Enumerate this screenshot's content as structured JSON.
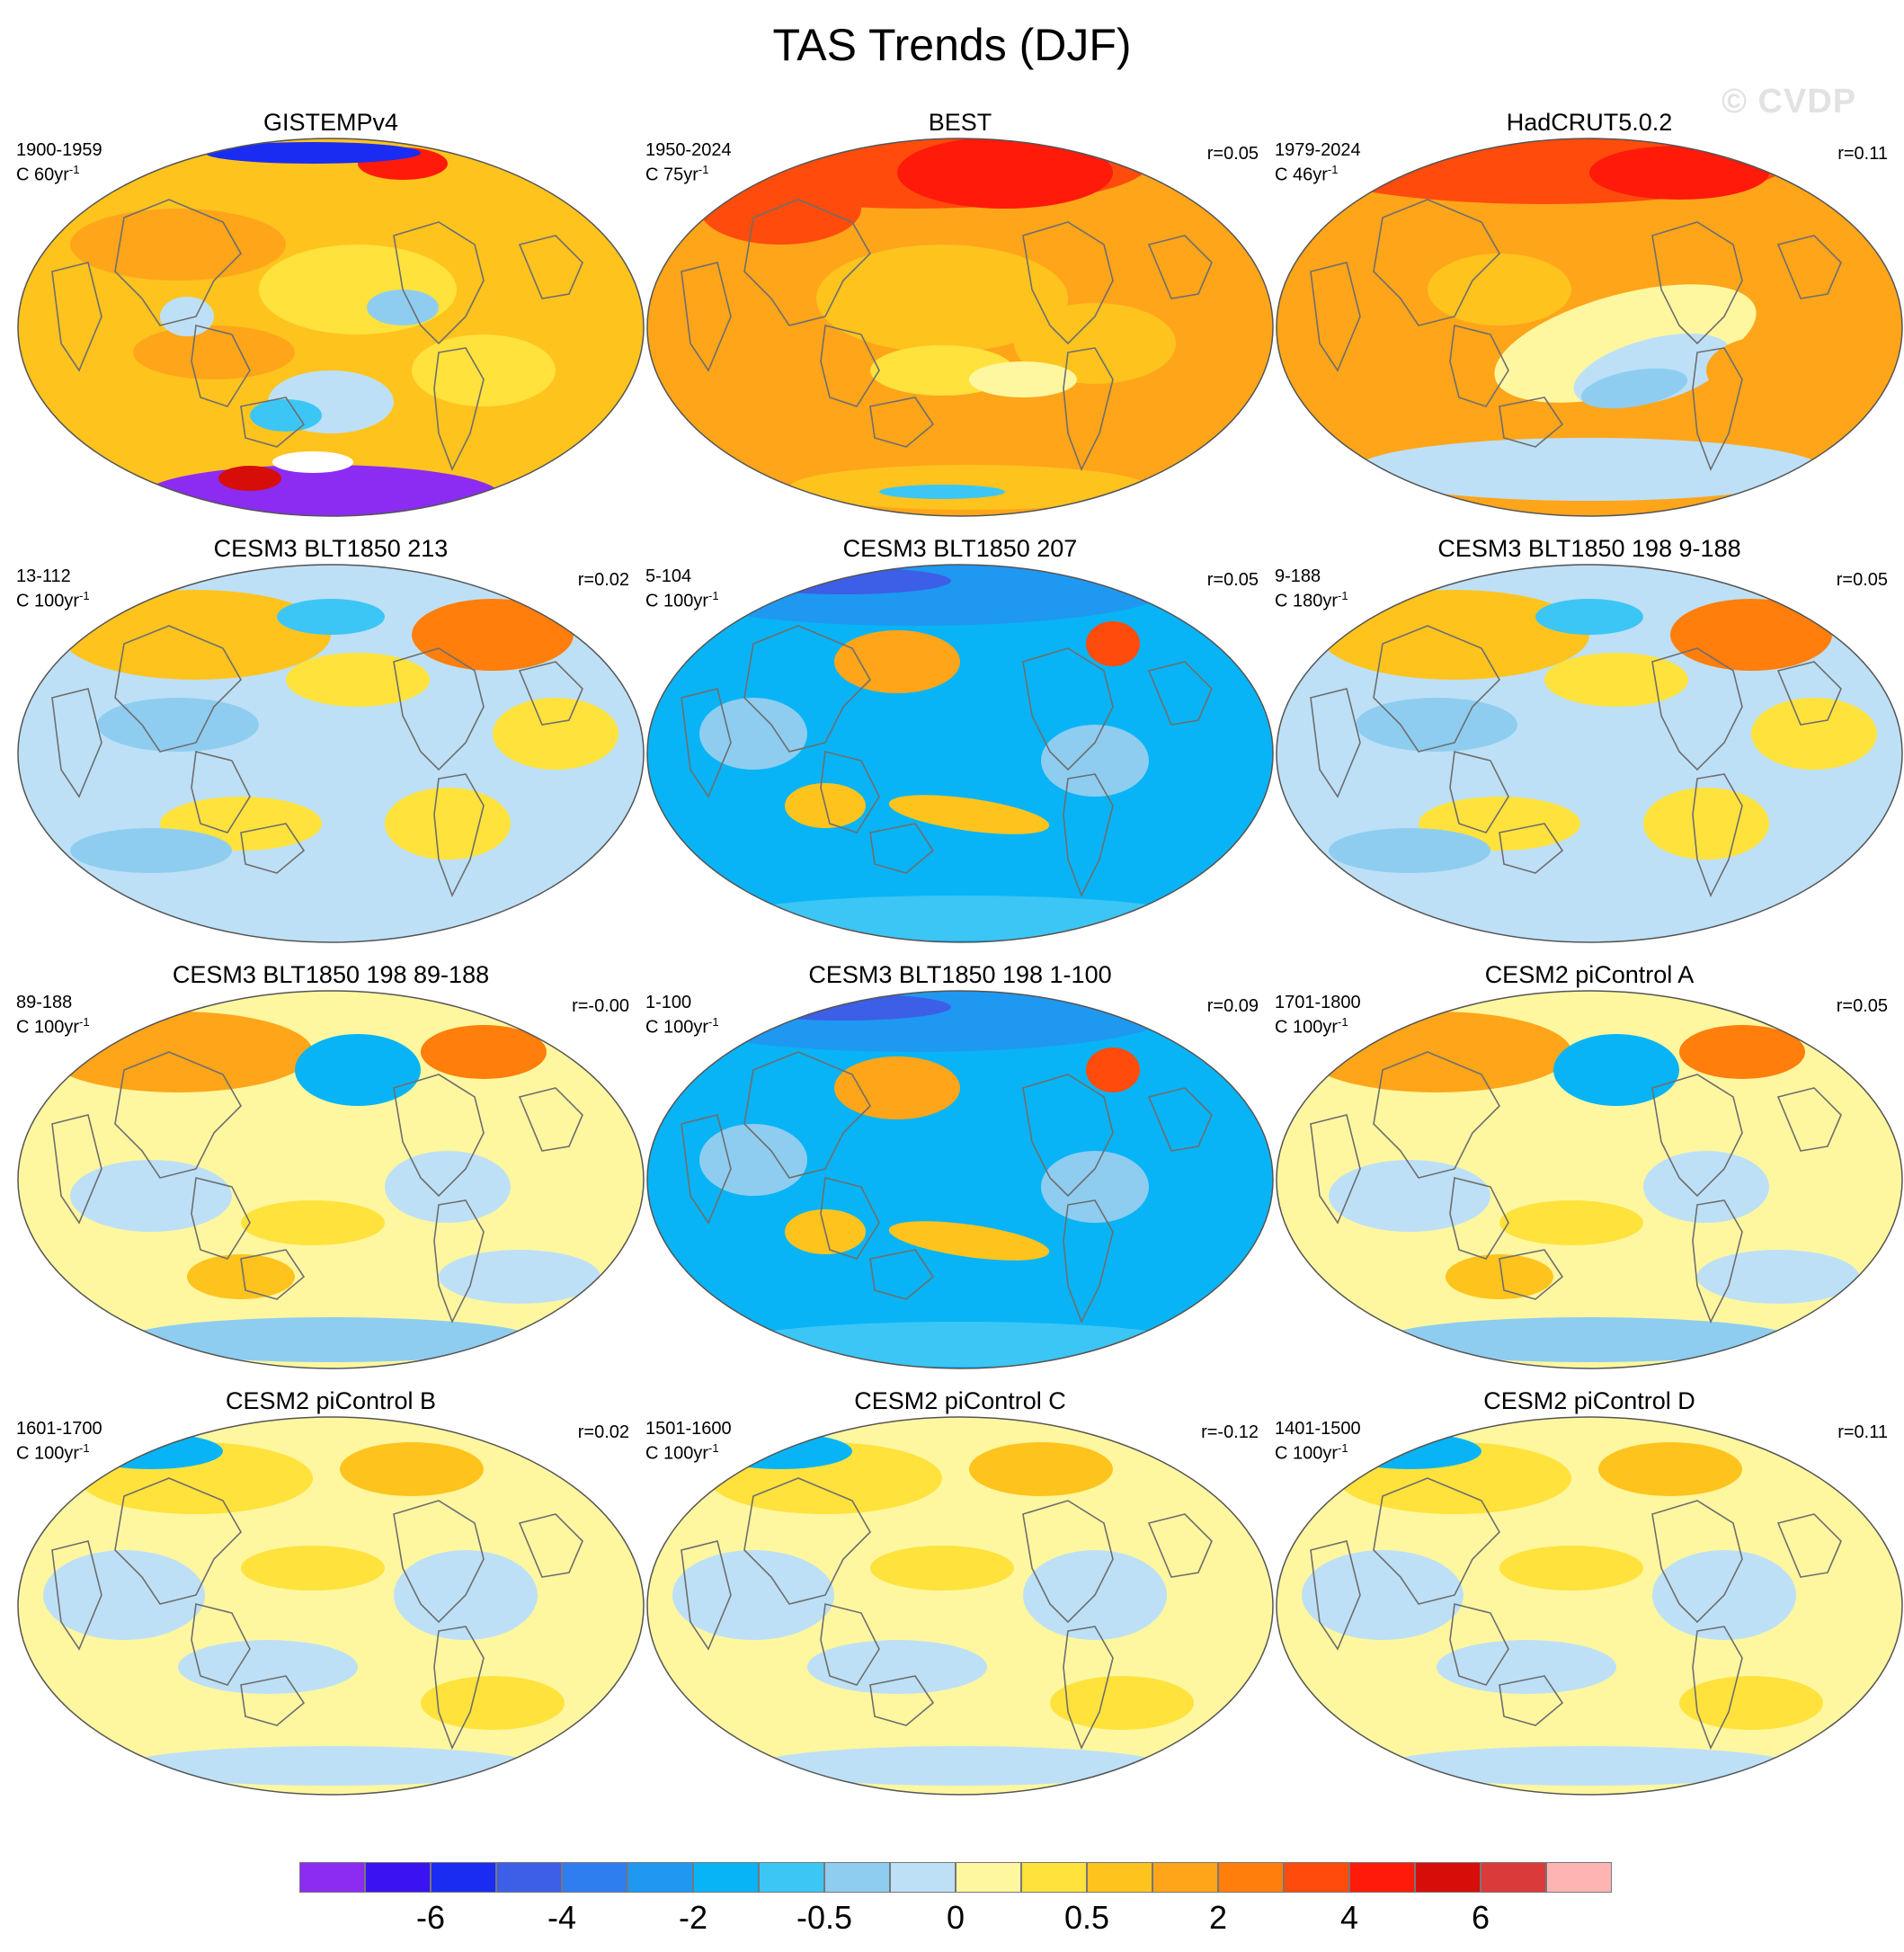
{
  "title": "TAS Trends (DJF)",
  "watermark": "© CVDP",
  "colors": {
    "ocean_outline": "#555555",
    "coast": "#6e6e6e",
    "scale": [
      "#8c2cf2",
      "#3b12f2",
      "#1a2cf2",
      "#3d5ee6",
      "#2f7ef0",
      "#1f98f2",
      "#08b4f5",
      "#3cc6f5",
      "#8ecdf0",
      "#bde0f6",
      "#fff7a0",
      "#ffe23c",
      "#ffc31e",
      "#ffa51a",
      "#ff7e0c",
      "#ff4c0c",
      "#ff1a0a",
      "#d70d0a",
      "#db3a3a",
      "#ffb4b4"
    ]
  },
  "panels": [
    {
      "title": "GISTEMPv4",
      "period": "1900-1959",
      "units": "C 60yr",
      "corr": "",
      "pattern": "gistemp"
    },
    {
      "title": "BEST",
      "period": "1950-2024",
      "units": "C 75yr",
      "corr": "r=0.05",
      "pattern": "best"
    },
    {
      "title": "HadCRUT5.0.2",
      "period": "1979-2024",
      "units": "C 46yr",
      "corr": "r=0.11",
      "pattern": "hadcrut"
    },
    {
      "title": "CESM3 BLT1850 213",
      "period": "13-112",
      "units": "C 100yr",
      "corr": "r=0.02",
      "pattern": "cool"
    },
    {
      "title": "CESM3 BLT1850 207",
      "period": "5-104",
      "units": "C 100yr",
      "corr": "r=0.05",
      "pattern": "blue"
    },
    {
      "title": "CESM3 BLT1850 198 9-188",
      "period": "9-188",
      "units": "C 180yr",
      "corr": "r=0.05",
      "pattern": "cool"
    },
    {
      "title": "CESM3 BLT1850 198 89-188",
      "period": "89-188",
      "units": "C 100yr",
      "corr": "r=-0.00",
      "pattern": "mixed"
    },
    {
      "title": "CESM3 BLT1850 198 1-100",
      "period": "1-100",
      "units": "C 100yr",
      "corr": "r=0.09",
      "pattern": "blue"
    },
    {
      "title": "CESM2 piControl A",
      "period": "1701-1800",
      "units": "C 100yr",
      "corr": "r=0.05",
      "pattern": "mixed"
    },
    {
      "title": "CESM2 piControl B",
      "period": "1601-1700",
      "units": "C 100yr",
      "corr": "r=0.02",
      "pattern": "pale"
    },
    {
      "title": "CESM2 piControl C",
      "period": "1501-1600",
      "units": "C 100yr",
      "corr": "r=-0.12",
      "pattern": "pale"
    },
    {
      "title": "CESM2 piControl D",
      "period": "1401-1500",
      "units": "C 100yr",
      "corr": "r=0.11",
      "pattern": "pale"
    }
  ],
  "units_superscript": "-1",
  "colorbar": {
    "labels": [
      "-6",
      "-4",
      "-2",
      "-0.5",
      "0",
      "0.5",
      "2",
      "4",
      "6"
    ]
  }
}
